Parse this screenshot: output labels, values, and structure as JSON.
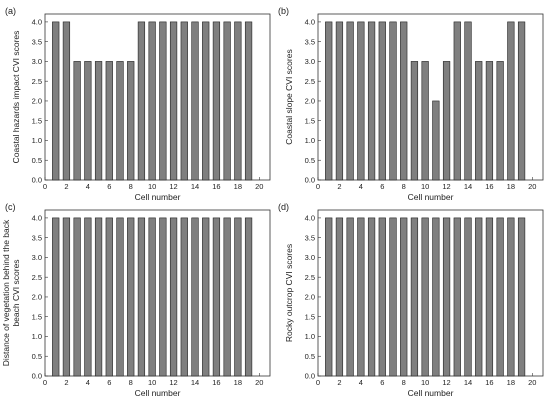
{
  "chart_data": [
    {
      "type": "bar",
      "panel_label": "(a)",
      "ylabel": "Coastal hazards impact CVI scores",
      "xlabel": "Cell number",
      "x": [
        1,
        2,
        3,
        4,
        5,
        6,
        7,
        8,
        9,
        10,
        11,
        12,
        13,
        14,
        15,
        16,
        17,
        18,
        19
      ],
      "values": [
        4,
        4,
        3,
        3,
        3,
        3,
        3,
        3,
        4,
        4,
        4,
        4,
        4,
        4,
        4,
        4,
        4,
        4,
        4
      ],
      "xlim": [
        0,
        21
      ],
      "ylim": [
        0,
        4.2
      ],
      "xticks": [
        "0",
        "2",
        "4",
        "6",
        "8",
        "10",
        "12",
        "14",
        "16",
        "18",
        "20"
      ],
      "yticks": [
        "0.0",
        "0.5",
        "1.0",
        "1.5",
        "2.0",
        "2.5",
        "3.0",
        "3.5",
        "4.0"
      ],
      "bar_color": "#7f7f7f"
    },
    {
      "type": "bar",
      "panel_label": "(b)",
      "ylabel": "Coastal slope CVI scores",
      "xlabel": "Cell number",
      "x": [
        1,
        2,
        3,
        4,
        5,
        6,
        7,
        8,
        9,
        10,
        11,
        12,
        13,
        14,
        15,
        16,
        17,
        18,
        19
      ],
      "values": [
        4,
        4,
        4,
        4,
        4,
        4,
        4,
        4,
        3,
        3,
        2,
        3,
        4,
        4,
        3,
        3,
        3,
        4,
        4
      ],
      "xlim": [
        0,
        21
      ],
      "ylim": [
        0,
        4.2
      ],
      "xticks": [
        "0",
        "2",
        "4",
        "6",
        "8",
        "10",
        "12",
        "14",
        "16",
        "18",
        "20"
      ],
      "yticks": [
        "0.0",
        "0.5",
        "1.0",
        "1.5",
        "2.0",
        "2.5",
        "3.0",
        "3.5",
        "4.0"
      ],
      "bar_color": "#7f7f7f"
    },
    {
      "type": "bar",
      "panel_label": "(c)",
      "ylabel": [
        "Distance of vegetation behind the back",
        "beach CVI scores"
      ],
      "xlabel": "Cell number",
      "x": [
        1,
        2,
        3,
        4,
        5,
        6,
        7,
        8,
        9,
        10,
        11,
        12,
        13,
        14,
        15,
        16,
        17,
        18,
        19
      ],
      "values": [
        4,
        4,
        4,
        4,
        4,
        4,
        4,
        4,
        4,
        4,
        4,
        4,
        4,
        4,
        4,
        4,
        4,
        4,
        4
      ],
      "xlim": [
        0,
        21
      ],
      "ylim": [
        0,
        4.2
      ],
      "xticks": [
        "0",
        "2",
        "4",
        "6",
        "8",
        "10",
        "12",
        "14",
        "16",
        "18",
        "20"
      ],
      "yticks": [
        "0.0",
        "0.5",
        "1.0",
        "1.5",
        "2.0",
        "2.5",
        "3.0",
        "3.5",
        "4.0"
      ],
      "bar_color": "#7f7f7f"
    },
    {
      "type": "bar",
      "panel_label": "(d)",
      "ylabel": "Rocky outcrop CVI scores",
      "xlabel": "Cell number",
      "x": [
        1,
        2,
        3,
        4,
        5,
        6,
        7,
        8,
        9,
        10,
        11,
        12,
        13,
        14,
        15,
        16,
        17,
        18,
        19
      ],
      "values": [
        4,
        4,
        4,
        4,
        4,
        4,
        4,
        4,
        4,
        4,
        4,
        4,
        4,
        4,
        4,
        4,
        4,
        4,
        4
      ],
      "xlim": [
        0,
        21
      ],
      "ylim": [
        0,
        4.2
      ],
      "xticks": [
        "0",
        "2",
        "4",
        "6",
        "8",
        "10",
        "12",
        "14",
        "16",
        "18",
        "20"
      ],
      "yticks": [
        "0.0",
        "0.5",
        "1.0",
        "1.5",
        "2.0",
        "2.5",
        "3.0",
        "3.5",
        "4.0"
      ],
      "bar_color": "#7f7f7f"
    }
  ]
}
